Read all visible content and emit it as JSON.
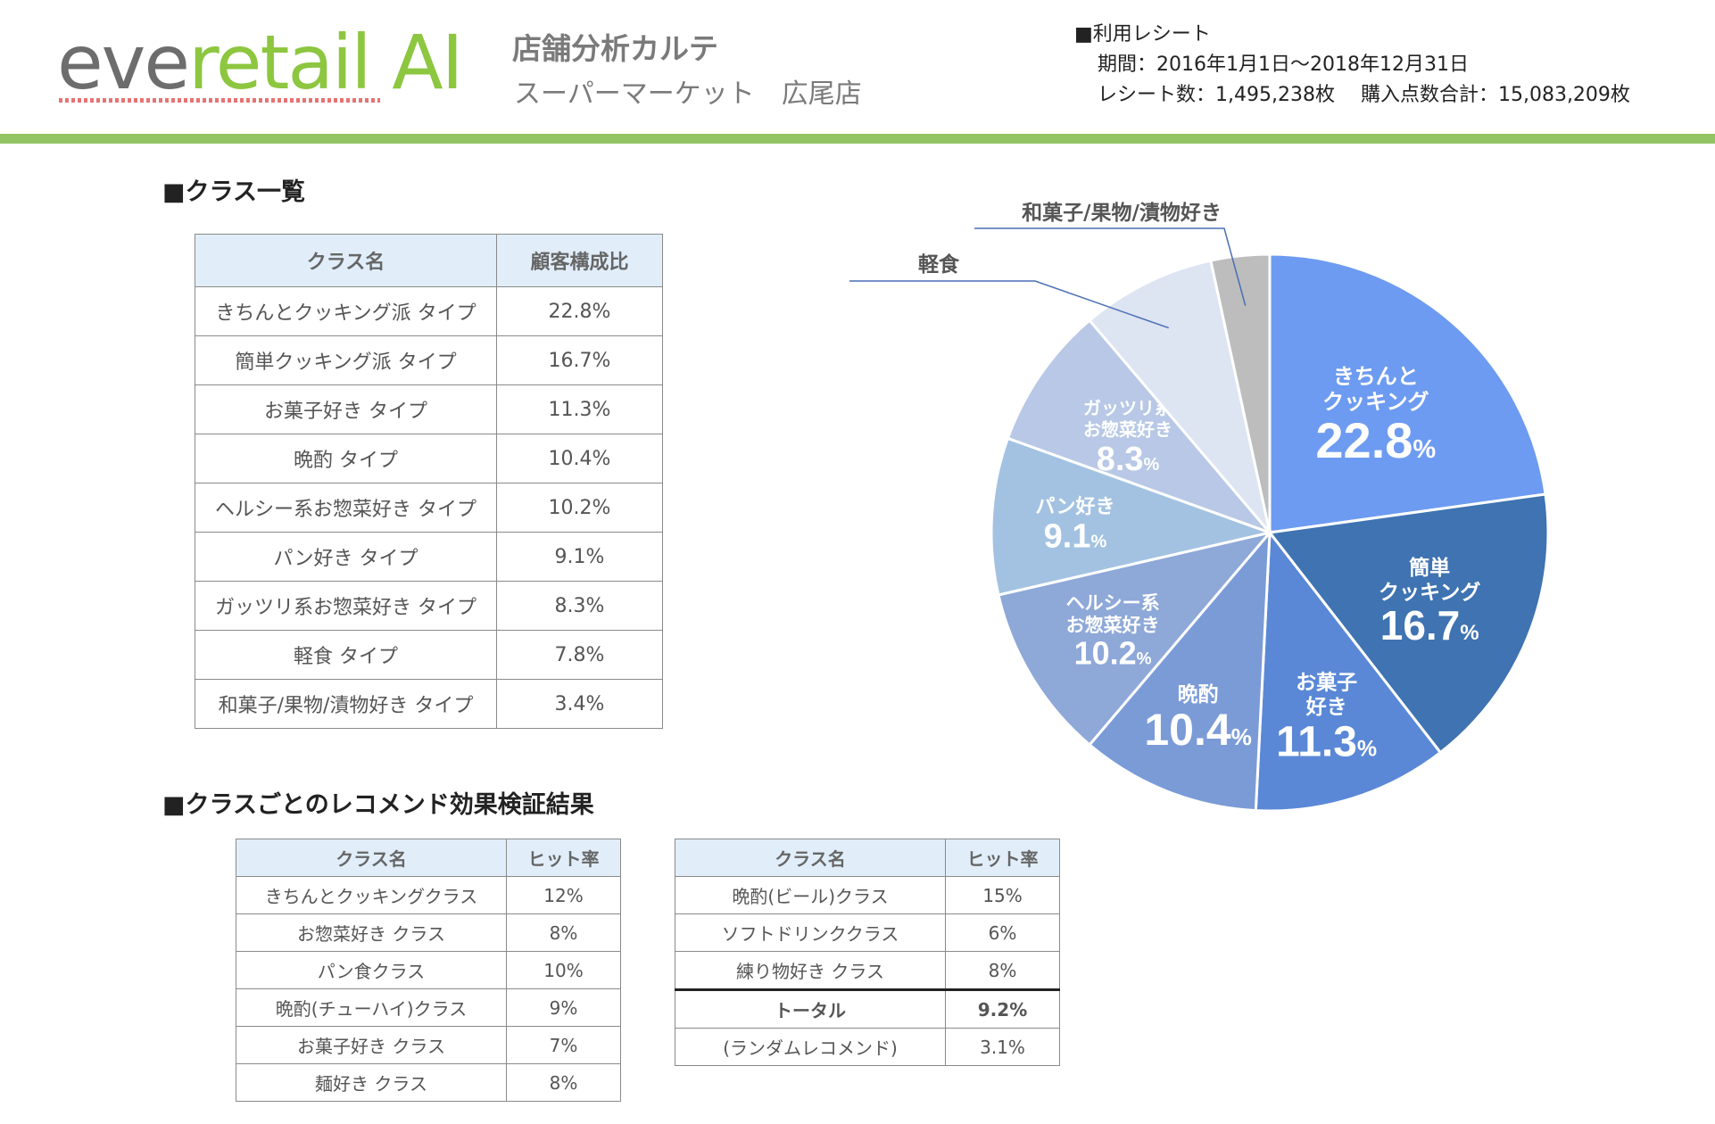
{
  "header": {
    "logo_part1": "eve",
    "logo_part2": "retail AI",
    "title": "店舗分析カルテ",
    "subtitle": "スーパーマーケット　広尾店",
    "receipt_heading": "■利用レシート",
    "receipt_period": "期間：2016年1月1日〜2018年12月31日",
    "receipt_counts": "レシート数：1,495,238枚　 購入点数合計：15,083,209枚"
  },
  "section_class_list": "■クラス一覧",
  "class_table": {
    "headers": [
      "クラス名",
      "顧客構成比"
    ],
    "rows": [
      [
        "きちんとクッキング派 タイプ",
        "22.8%"
      ],
      [
        "簡単クッキング派 タイプ",
        "16.7%"
      ],
      [
        "お菓子好き タイプ",
        "11.3%"
      ],
      [
        "晩酌 タイプ",
        "10.4%"
      ],
      [
        "ヘルシー系お惣菜好き タイプ",
        "10.2%"
      ],
      [
        "パン好き タイプ",
        "9.1%"
      ],
      [
        "ガッツリ系お惣菜好き タイプ",
        "8.3%"
      ],
      [
        "軽食 タイプ",
        "7.8%"
      ],
      [
        "和菓子/果物/漬物好き タイプ",
        "3.4%"
      ]
    ]
  },
  "section_recommend": "■クラスごとのレコメンド効果検証結果",
  "recommend_table_left": {
    "headers": [
      "クラス名",
      "ヒット率"
    ],
    "rows": [
      [
        "きちんとクッキングクラス",
        "12%"
      ],
      [
        "お惣菜好き クラス",
        "8%"
      ],
      [
        "パン食クラス",
        "10%"
      ],
      [
        "晩酌(チューハイ)クラス",
        "9%"
      ],
      [
        "お菓子好き クラス",
        "7%"
      ],
      [
        "麺好き クラス",
        "8%"
      ]
    ]
  },
  "recommend_table_right": {
    "headers": [
      "クラス名",
      "ヒット率"
    ],
    "rows": [
      [
        "晩酌(ビール)クラス",
        "15%"
      ],
      [
        "ソフトドリンククラス",
        "6%"
      ],
      [
        "練り物好き クラス",
        "8%"
      ]
    ],
    "total_rows": [
      [
        "トータル",
        "9.2%"
      ],
      [
        "(ランダムレコメンド)",
        "3.1%"
      ]
    ]
  },
  "chart_data": {
    "type": "pie",
    "title": "",
    "slices": [
      {
        "label_lines": [
          "きちんと",
          "クッキング"
        ],
        "value": 22.8,
        "color": "#6d9bf1"
      },
      {
        "label_lines": [
          "簡単",
          "クッキング"
        ],
        "value": 16.7,
        "color": "#3f73b1"
      },
      {
        "label_lines": [
          "お菓子",
          "好き"
        ],
        "value": 11.3,
        "color": "#5a88d6"
      },
      {
        "label_lines": [
          "晩酌"
        ],
        "value": 10.4,
        "color": "#7b9bd7"
      },
      {
        "label_lines": [
          "ヘルシー系",
          "お惣菜好き"
        ],
        "value": 10.2,
        "color": "#8ea8d8"
      },
      {
        "label_lines": [
          "パン好き"
        ],
        "value": 9.1,
        "color": "#a3c2e2"
      },
      {
        "label_lines": [
          "ガッツリ系",
          "お惣菜好き"
        ],
        "value": 8.3,
        "color": "#b8c8e6"
      },
      {
        "label_lines": [
          "軽食"
        ],
        "value": 7.8,
        "color": "#dde4f2",
        "external_label": true
      },
      {
        "label_lines": [
          "和菓子/果物/漬物好き"
        ],
        "value": 3.4,
        "color": "#bdbdbd",
        "external_label": true
      }
    ],
    "percent_sign": "%",
    "start_angle_deg": 0,
    "direction": "clockwise",
    "legend": "none"
  }
}
